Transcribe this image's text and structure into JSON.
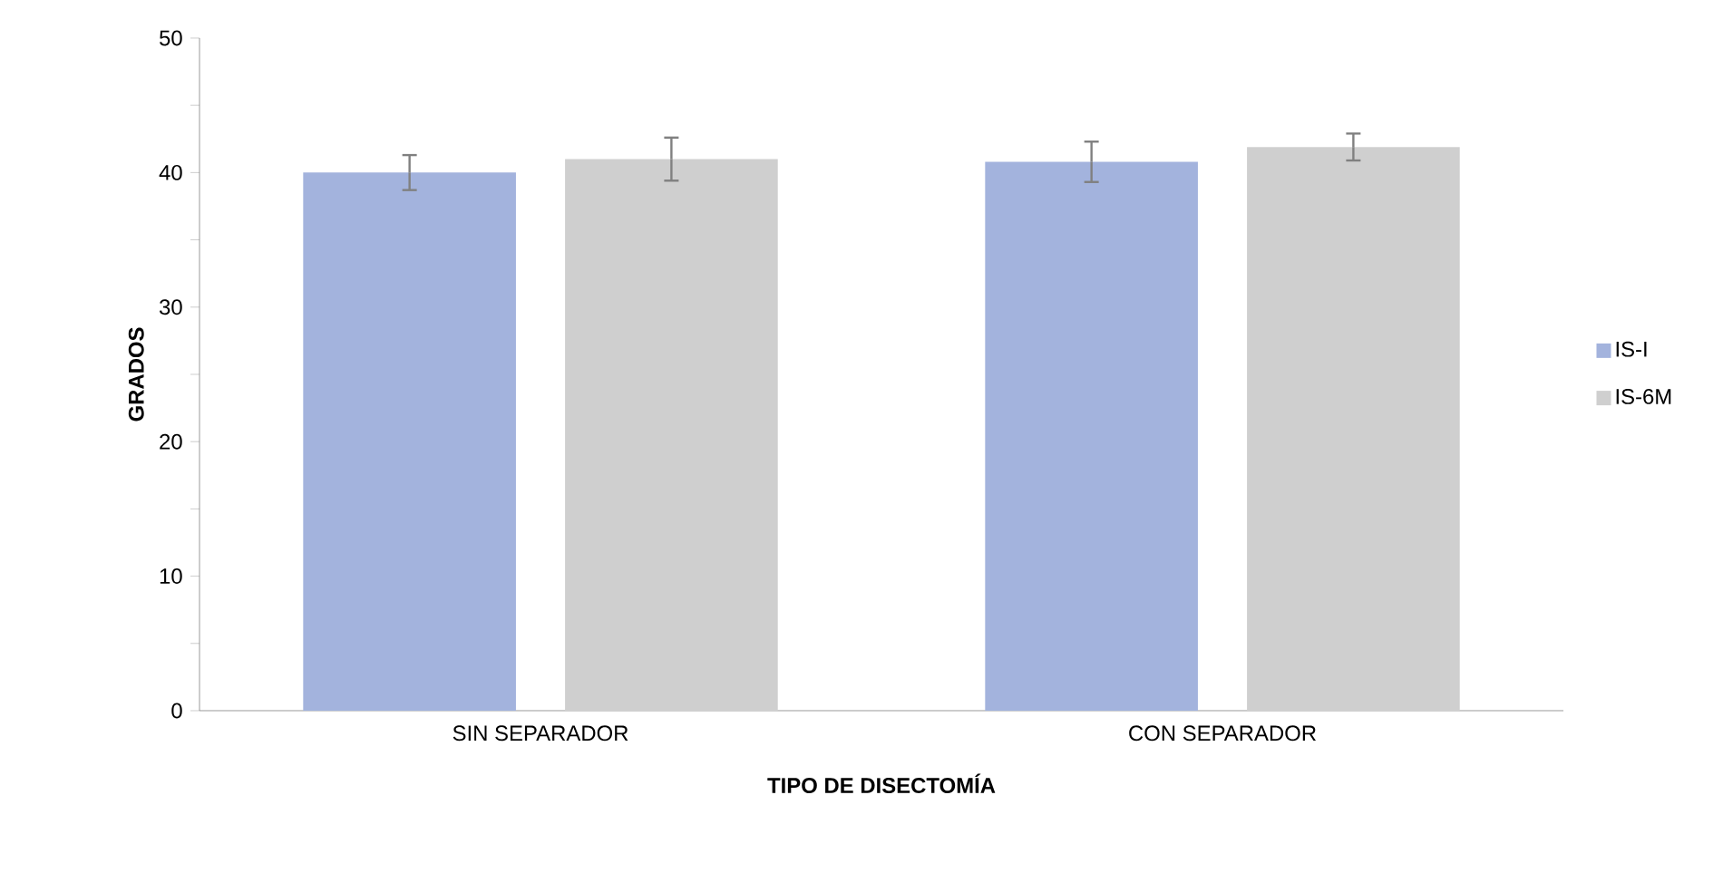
{
  "chart_data": {
    "type": "bar",
    "xlabel": "TIPO DE DISECTOMÍA",
    "ylabel": "GRADOS",
    "categories": [
      "SIN SEPARADOR",
      "CON SEPARADOR"
    ],
    "series": [
      {
        "name": "IS-I",
        "color": "#a3b3dd",
        "values": [
          40.0,
          40.8
        ],
        "errors": [
          1.3,
          1.5
        ]
      },
      {
        "name": "IS-6M",
        "color": "#cfcfcf",
        "values": [
          41.0,
          41.9
        ],
        "errors": [
          1.6,
          1.0
        ]
      }
    ],
    "ylim": [
      0,
      50
    ],
    "yticks": [
      0,
      {
        "value": 5,
        "label": null
      },
      10,
      {
        "value": 15,
        "label": null
      },
      20,
      {
        "value": 25,
        "label": null
      },
      30,
      {
        "value": 35,
        "label": null
      },
      40,
      {
        "value": 45,
        "label": null
      },
      50
    ],
    "grid": false,
    "legend": "right"
  }
}
